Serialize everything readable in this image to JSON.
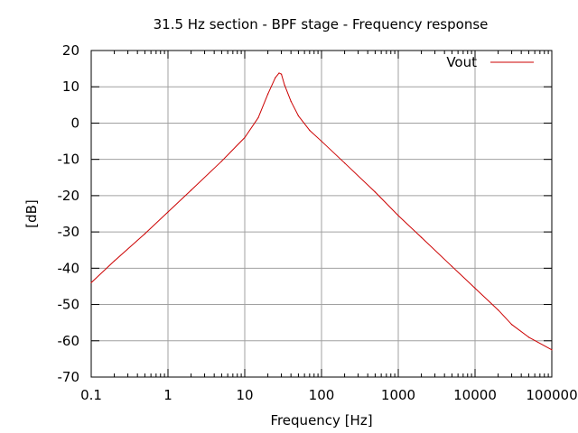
{
  "chart_data": {
    "type": "line",
    "title": "31.5 Hz section - BPF stage - Frequency response",
    "xlabel": "Frequency [Hz]",
    "ylabel": "[dB]",
    "x_scale": "log",
    "xlim": [
      0.1,
      100000
    ],
    "ylim": [
      -70,
      20
    ],
    "x_ticks": [
      0.1,
      1,
      10,
      100,
      1000,
      10000,
      100000
    ],
    "x_tick_labels": [
      "0.1",
      "1",
      "10",
      "100",
      "1000",
      "10000",
      "100000"
    ],
    "y_ticks": [
      -70,
      -60,
      -50,
      -40,
      -30,
      -20,
      -10,
      0,
      10,
      20
    ],
    "y_tick_labels": [
      "-70",
      "-60",
      "-50",
      "-40",
      "-30",
      "-20",
      "-10",
      "0",
      "10",
      "20"
    ],
    "grid": true,
    "legend_position": "top-right",
    "series": [
      {
        "name": "Vout",
        "color": "#cc0000",
        "x": [
          0.1,
          0.2,
          0.5,
          1,
          2,
          5,
          10,
          15,
          20,
          25,
          28,
          30,
          33,
          40,
          50,
          70,
          100,
          200,
          500,
          1000,
          2000,
          5000,
          10000,
          20000,
          30000,
          50000,
          100000
        ],
        "y": [
          -44,
          -38,
          -30.5,
          -24.5,
          -18.5,
          -10.5,
          -4,
          1.5,
          8,
          12.5,
          13.8,
          13.5,
          10.5,
          6,
          2,
          -2,
          -5,
          -11,
          -19,
          -25.5,
          -31.5,
          -39.5,
          -45.5,
          -51.5,
          -55.5,
          -59,
          -62.5
        ]
      }
    ]
  }
}
